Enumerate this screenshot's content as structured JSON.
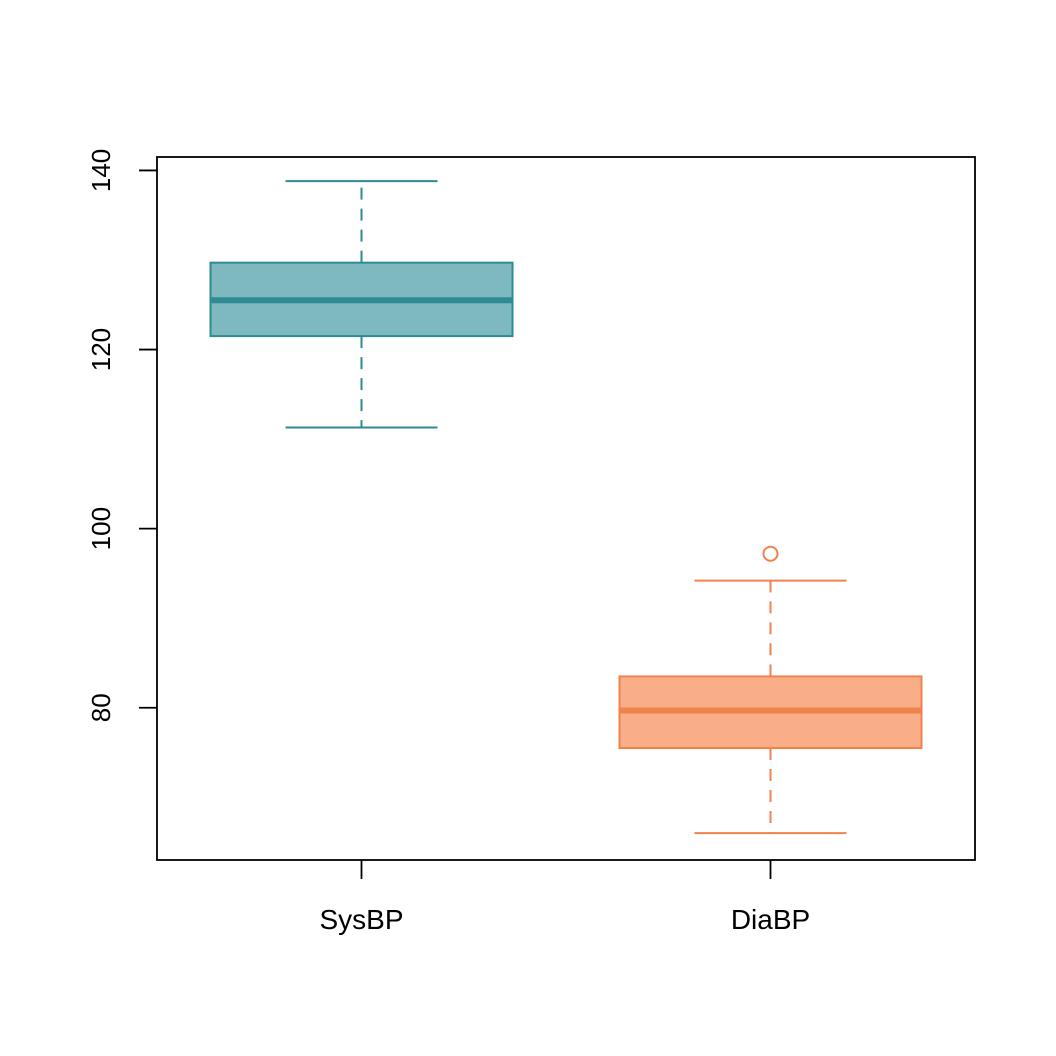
{
  "chart_data": {
    "type": "boxplot",
    "title": "",
    "xlabel": "",
    "ylabel": "",
    "ylim": [
      63,
      141.5
    ],
    "yticks": [
      80,
      100,
      120,
      140
    ],
    "grid": false,
    "legend": "none",
    "categories": [
      "SysBP",
      "DiaBP"
    ],
    "series": [
      {
        "category": "SysBP",
        "min": 111.3,
        "q1": 121.5,
        "median": 125.5,
        "q3": 129.7,
        "max": 138.8,
        "outliers": [],
        "fill": "#7db9bf",
        "stroke": "#2e8b91"
      },
      {
        "category": "DiaBP",
        "min": 66.0,
        "q1": 75.5,
        "median": 79.7,
        "q3": 83.5,
        "max": 94.2,
        "outliers": [
          97.2
        ],
        "fill": "#f9ae88",
        "stroke": "#f0824e"
      }
    ]
  }
}
